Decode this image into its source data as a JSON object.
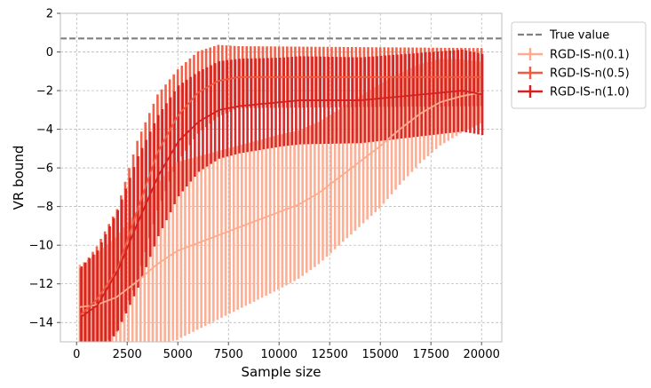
{
  "chart_data": {
    "type": "line",
    "xlabel": "Sample size",
    "ylabel": "VR bound",
    "xlim": [
      -800,
      21000
    ],
    "ylim": [
      -15,
      2
    ],
    "xticks": [
      0,
      2500,
      5000,
      7500,
      10000,
      12500,
      15000,
      17500,
      20000
    ],
    "xtick_labels": [
      "0",
      "2500",
      "5000",
      "7500",
      "10000",
      "12500",
      "15000",
      "17500",
      "20000"
    ],
    "yticks": [
      2,
      0,
      -2,
      -4,
      -6,
      -8,
      -10,
      -12,
      -14
    ],
    "ytick_labels": [
      "2",
      "0",
      "−2",
      "−4",
      "−6",
      "−8",
      "−10",
      "−12",
      "−14"
    ],
    "grid": true,
    "legend_position": "outside-top-right",
    "reference_line": {
      "name": "True value",
      "y": 0.7,
      "style": "dashed",
      "color": "#808080"
    },
    "x_range": {
      "start": 200,
      "end": 20000,
      "points": 100
    },
    "series": [
      {
        "name": "RGD-IS-n(0.1)",
        "color": "#fcab8e",
        "keypoints": [
          [
            200,
            -13.2
          ],
          [
            1000,
            -13.1
          ],
          [
            2000,
            -12.7
          ],
          [
            3000,
            -11.9
          ],
          [
            4000,
            -11.0
          ],
          [
            5000,
            -10.3
          ],
          [
            6000,
            -9.9
          ],
          [
            7000,
            -9.5
          ],
          [
            8000,
            -9.1
          ],
          [
            9000,
            -8.7
          ],
          [
            10000,
            -8.3
          ],
          [
            11000,
            -7.9
          ],
          [
            12000,
            -7.3
          ],
          [
            13000,
            -6.5
          ],
          [
            14000,
            -5.7
          ],
          [
            15000,
            -4.9
          ],
          [
            16000,
            -4.0
          ],
          [
            17000,
            -3.2
          ],
          [
            18000,
            -2.6
          ],
          [
            19000,
            -2.3
          ],
          [
            20000,
            -2.1
          ]
        ],
        "error_keypoints": [
          [
            200,
            2.2
          ],
          [
            5000,
            4.6
          ],
          [
            10000,
            4.0
          ],
          [
            15000,
            3.2
          ],
          [
            20000,
            1.6
          ]
        ]
      },
      {
        "name": "RGD-IS-n(0.5)",
        "color": "#ef5a40",
        "keypoints": [
          [
            200,
            -13.6
          ],
          [
            1000,
            -12.8
          ],
          [
            2000,
            -11.3
          ],
          [
            3000,
            -8.2
          ],
          [
            4000,
            -5.2
          ],
          [
            5000,
            -3.3
          ],
          [
            6000,
            -2.1
          ],
          [
            7000,
            -1.5
          ],
          [
            8000,
            -1.3
          ],
          [
            9000,
            -1.3
          ],
          [
            10000,
            -1.3
          ],
          [
            12000,
            -1.3
          ],
          [
            14000,
            -1.3
          ],
          [
            16000,
            -1.3
          ],
          [
            18000,
            -1.3
          ],
          [
            20000,
            -1.3
          ]
        ],
        "error_keypoints": [
          [
            200,
            2.4
          ],
          [
            3000,
            3.6
          ],
          [
            5000,
            2.4
          ],
          [
            8000,
            1.6
          ],
          [
            20000,
            1.5
          ]
        ]
      },
      {
        "name": "RGD-IS-n(1.0)",
        "color": "#d42020",
        "keypoints": [
          [
            200,
            -13.7
          ],
          [
            1000,
            -13.1
          ],
          [
            2000,
            -11.3
          ],
          [
            3000,
            -8.8
          ],
          [
            4000,
            -6.4
          ],
          [
            5000,
            -4.6
          ],
          [
            6000,
            -3.6
          ],
          [
            7000,
            -3.0
          ],
          [
            8000,
            -2.8
          ],
          [
            9000,
            -2.7
          ],
          [
            10000,
            -2.6
          ],
          [
            11000,
            -2.5
          ],
          [
            12000,
            -2.5
          ],
          [
            13000,
            -2.5
          ],
          [
            14000,
            -2.5
          ],
          [
            15000,
            -2.4
          ],
          [
            16000,
            -2.3
          ],
          [
            17000,
            -2.2
          ],
          [
            18000,
            -2.1
          ],
          [
            19000,
            -2.0
          ],
          [
            20000,
            -2.2
          ]
        ],
        "error_keypoints": [
          [
            200,
            2.6
          ],
          [
            3000,
            3.4
          ],
          [
            6000,
            2.6
          ],
          [
            10000,
            2.3
          ],
          [
            20000,
            2.1
          ]
        ]
      }
    ]
  }
}
